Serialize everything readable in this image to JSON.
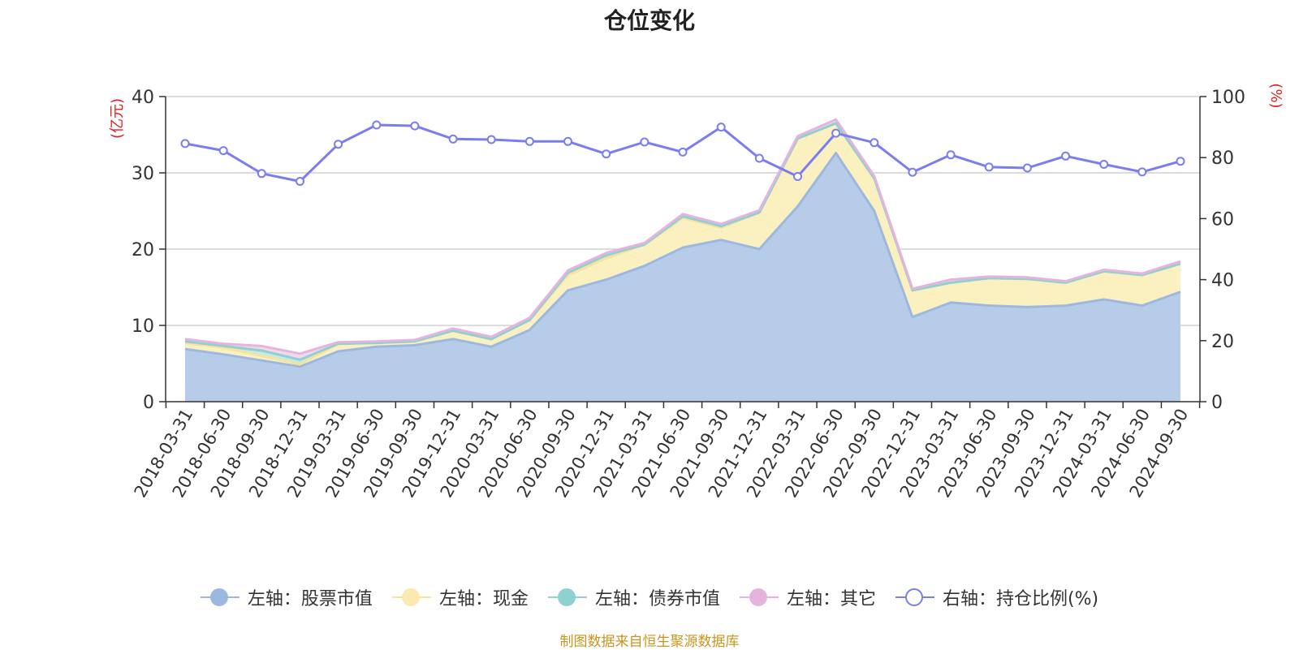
{
  "chart_data": {
    "type": "area",
    "title": "仓位变化",
    "left_unit_label": "(亿元)",
    "right_unit_label": "(%)",
    "categories": [
      "2018-03-31",
      "2018-06-30",
      "2018-09-30",
      "2018-12-31",
      "2019-03-31",
      "2019-06-30",
      "2019-09-30",
      "2019-12-31",
      "2020-03-31",
      "2020-06-30",
      "2020-09-30",
      "2020-12-31",
      "2021-03-31",
      "2021-06-30",
      "2021-09-30",
      "2021-12-31",
      "2022-03-31",
      "2022-06-30",
      "2022-09-30",
      "2022-12-31",
      "2023-03-31",
      "2023-06-30",
      "2023-09-30",
      "2023-12-31",
      "2024-03-31",
      "2024-06-30",
      "2024-09-30"
    ],
    "left_axis": {
      "min": 0,
      "max": 40,
      "ticks": [
        0,
        10,
        20,
        30,
        40
      ]
    },
    "right_axis": {
      "min": 0,
      "max": 100,
      "ticks": [
        0,
        20,
        40,
        60,
        80,
        100
      ]
    },
    "grid": true,
    "legend_position": "bottom",
    "series": [
      {
        "name": "左轴：股票市值",
        "axis": "left",
        "stacked": true,
        "fill": "#b7cce9",
        "stroke": "#9db8e0",
        "values": [
          6.9,
          6.2,
          5.4,
          4.6,
          6.6,
          7.2,
          7.4,
          8.2,
          7.2,
          9.4,
          14.6,
          16.0,
          17.8,
          20.2,
          21.2,
          20.0,
          25.6,
          32.6,
          25.0,
          11.1,
          13.0,
          12.6,
          12.4,
          12.6,
          13.4,
          12.6,
          14.4
        ]
      },
      {
        "name": "左轴：现金",
        "axis": "left",
        "stacked": true,
        "fill": "#faf0c0",
        "stroke": "#f7e39b",
        "values": [
          0.8,
          0.9,
          0.6,
          0.3,
          1.0,
          0.5,
          0.5,
          1.1,
          1.0,
          1.3,
          2.0,
          2.8,
          2.8,
          3.9,
          1.6,
          4.8,
          8.9,
          3.9,
          4.3,
          3.5,
          2.6,
          3.6,
          3.7,
          3.0,
          3.7,
          4.0,
          3.7
        ]
      },
      {
        "name": "左轴：债券市值",
        "axis": "left",
        "stacked": true,
        "fill": "#c8e8e3",
        "stroke": "#8fd0d0",
        "values": [
          0.2,
          0.2,
          0.7,
          0.6,
          0.0,
          0.0,
          0.0,
          0.0,
          0.0,
          0.0,
          0.3,
          0.4,
          0.0,
          0.2,
          0.2,
          0.0,
          0.0,
          0.0,
          0.0,
          0.0,
          0.0,
          0.0,
          0.0,
          0.0,
          0.0,
          0.0,
          0.0
        ]
      },
      {
        "name": "左轴：其它",
        "axis": "left",
        "stacked": true,
        "fill": "#f2d8ea",
        "stroke": "#e5b4dc",
        "values": [
          0.3,
          0.3,
          0.6,
          0.8,
          0.2,
          0.2,
          0.2,
          0.3,
          0.3,
          0.3,
          0.3,
          0.3,
          0.2,
          0.3,
          0.3,
          0.3,
          0.3,
          0.5,
          0.3,
          0.2,
          0.4,
          0.2,
          0.2,
          0.2,
          0.2,
          0.2,
          0.3
        ]
      },
      {
        "name": "右轴：持仓比例(%)",
        "axis": "right",
        "type": "line",
        "stroke": "#7a7df0",
        "values": [
          84.6,
          82.3,
          74.8,
          72.2,
          84.4,
          90.7,
          90.4,
          86.1,
          85.9,
          85.3,
          85.3,
          81.2,
          85.1,
          81.8,
          90.0,
          79.8,
          73.8,
          88.0,
          84.9,
          75.2,
          80.9,
          76.9,
          76.6,
          80.5,
          77.8,
          75.3,
          78.8
        ]
      }
    ]
  },
  "legend": [
    {
      "label": "左轴：股票市值",
      "dot_fill": "#9db8e0",
      "dot_border": "#9db8e0",
      "line": "#9db8e0"
    },
    {
      "label": "左轴：现金",
      "dot_fill": "#faeab0",
      "dot_border": "#faeab0",
      "line": "#f7e39b"
    },
    {
      "label": "左轴：债券市值",
      "dot_fill": "#8fd0d0",
      "dot_border": "#8fd0d0",
      "line": "#8fd0d0"
    },
    {
      "label": "左轴：其它",
      "dot_fill": "#e5b4dc",
      "dot_border": "#e5b4dc",
      "line": "#e5b4dc"
    },
    {
      "label": "右轴：持仓比例(%)",
      "dot_fill": "#ffffff",
      "dot_border": "#7a7df0",
      "line": "#7a7df0"
    }
  ],
  "footer": "制图数据来自恒生聚源数据库",
  "colors": {
    "left_unit_color": "#e02020",
    "right_unit_color": "#e02020",
    "grid_color": "#c8c8c8",
    "axis_color": "#333333"
  }
}
